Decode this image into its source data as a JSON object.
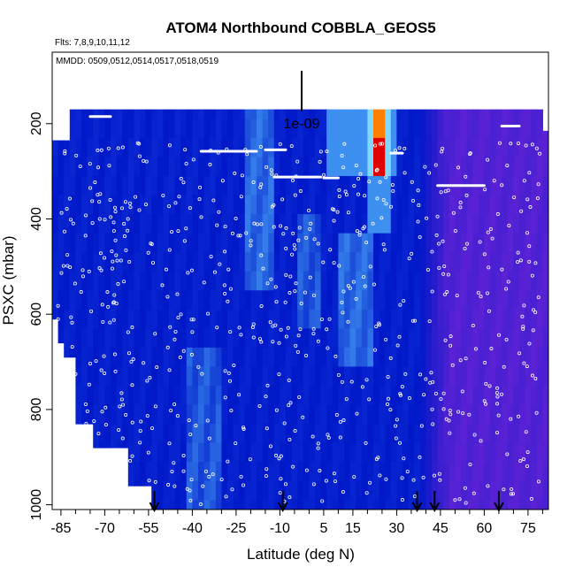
{
  "chart_data": {
    "type": "heatmap",
    "title": "ATOM4 Northbound COBBLA_GEOS5",
    "subtitle_left": "Flts: 7,8,9,10,11,12",
    "annotation": "MMDD: 0509,0512,0514,0517,0518,0519",
    "scale_label": "1e-09",
    "xlabel": "Latitude (deg N)",
    "ylabel": "PSXC (mbar)",
    "xlim": [
      -88,
      82
    ],
    "ylim": [
      1010,
      50
    ],
    "y_reversed": true,
    "grid": false,
    "x_ticks": [
      -85,
      -70,
      -55,
      -40,
      -25,
      -10,
      5,
      15,
      30,
      45,
      60,
      75
    ],
    "x_tick_labels": [
      "-85",
      "-70",
      "-55",
      "-40",
      "-25",
      "-10",
      "5",
      "15",
      "30",
      "45",
      "60",
      "75"
    ],
    "x_minor_ticks": [
      -80,
      -75,
      -65,
      -60,
      -50,
      -45,
      -35,
      -30,
      -20,
      -15,
      -5,
      0,
      10,
      20,
      25,
      35,
      40,
      50,
      55,
      65,
      70,
      80
    ],
    "y_ticks": [
      200,
      400,
      600,
      800,
      1000
    ],
    "y_tick_labels": [
      "200",
      "400",
      "600",
      "800",
      "1000"
    ],
    "arrow_latitudes": [
      -53,
      -9,
      37,
      43,
      65
    ],
    "colors": {
      "background_field": "#0018c8",
      "south_high_levels": "#1030d8",
      "north_purple": "#5a22d4",
      "light_blue": "#3d8ff0",
      "cyan": "#80d8ff",
      "yellow": "#ffe840",
      "orange": "#ff8000",
      "red": "#e00000",
      "flight_points": "#ffffff"
    }
  }
}
